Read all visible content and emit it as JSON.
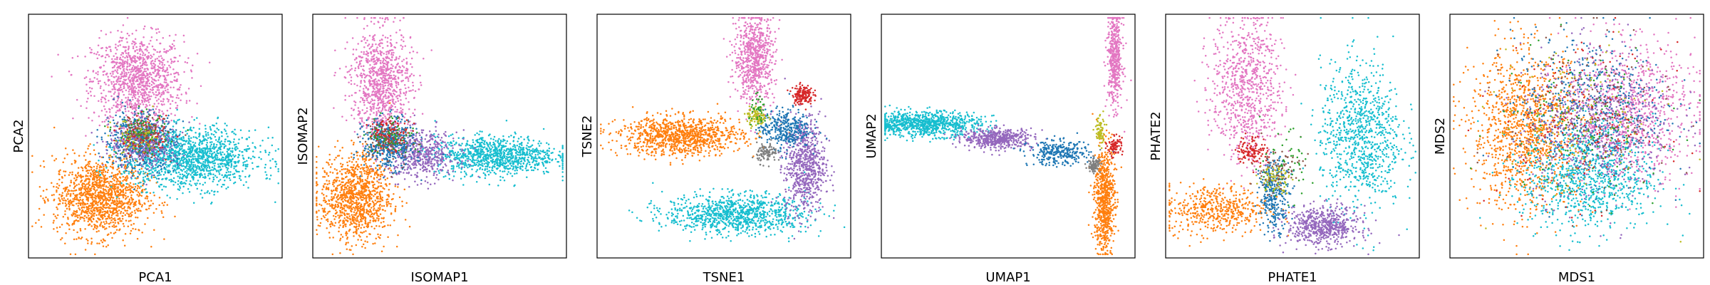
{
  "chart_data": [
    {
      "type": "scatter",
      "xlabel": "PCA1",
      "ylabel": "PCA2",
      "xticks": [],
      "yticks": [],
      "grid": false,
      "legend": "none",
      "clusters": [
        {
          "color": "#e377c2",
          "cx": 0.43,
          "cy": 0.73,
          "sx": 0.09,
          "sy": 0.09,
          "n": 1100
        },
        {
          "color": "#ff7f0e",
          "cx": 0.28,
          "cy": 0.25,
          "sx": 0.09,
          "sy": 0.08,
          "n": 1300
        },
        {
          "color": "#17becf",
          "cx": 0.64,
          "cy": 0.41,
          "sx": 0.13,
          "sy": 0.06,
          "n": 1400
        },
        {
          "color": "#1f77b4",
          "cx": 0.44,
          "cy": 0.48,
          "sx": 0.07,
          "sy": 0.06,
          "n": 500
        },
        {
          "color": "#9467bd",
          "cx": 0.46,
          "cy": 0.47,
          "sx": 0.07,
          "sy": 0.05,
          "n": 300
        },
        {
          "color": "#d62728",
          "cx": 0.45,
          "cy": 0.5,
          "sx": 0.05,
          "sy": 0.04,
          "n": 120
        },
        {
          "color": "#2ca02c",
          "cx": 0.45,
          "cy": 0.51,
          "sx": 0.05,
          "sy": 0.04,
          "n": 90
        },
        {
          "color": "#bcbd22",
          "cx": 0.43,
          "cy": 0.49,
          "sx": 0.05,
          "sy": 0.04,
          "n": 70
        },
        {
          "color": "#8c564b",
          "cx": 0.44,
          "cy": 0.5,
          "sx": 0.05,
          "sy": 0.05,
          "n": 80
        }
      ]
    },
    {
      "type": "scatter",
      "xlabel": "ISOMAP1",
      "ylabel": "ISOMAP2",
      "xticks": [],
      "yticks": [],
      "grid": false,
      "legend": "none",
      "clusters": [
        {
          "color": "#e377c2",
          "cx": 0.27,
          "cy": 0.72,
          "sx": 0.06,
          "sy": 0.11,
          "n": 900
        },
        {
          "color": "#ff7f0e",
          "cx": 0.17,
          "cy": 0.25,
          "sx": 0.07,
          "sy": 0.09,
          "n": 1100
        },
        {
          "color": "#17becf",
          "cx": 0.72,
          "cy": 0.42,
          "sx": 0.12,
          "sy": 0.04,
          "n": 1000
        },
        {
          "color": "#9467bd",
          "cx": 0.43,
          "cy": 0.42,
          "sx": 0.07,
          "sy": 0.05,
          "n": 500
        },
        {
          "color": "#1f77b4",
          "cx": 0.3,
          "cy": 0.47,
          "sx": 0.05,
          "sy": 0.05,
          "n": 450
        },
        {
          "color": "#d62728",
          "cx": 0.3,
          "cy": 0.51,
          "sx": 0.04,
          "sy": 0.03,
          "n": 120
        },
        {
          "color": "#2ca02c",
          "cx": 0.31,
          "cy": 0.5,
          "sx": 0.05,
          "sy": 0.04,
          "n": 80
        },
        {
          "color": "#8c564b",
          "cx": 0.3,
          "cy": 0.48,
          "sx": 0.05,
          "sy": 0.05,
          "n": 70
        }
      ]
    },
    {
      "type": "scatter",
      "xlabel": "TSNE1",
      "ylabel": "TSNE2",
      "xticks": [],
      "yticks": [],
      "grid": false,
      "legend": "none",
      "clusters": [
        {
          "color": "#e377c2",
          "cx": 0.62,
          "cy": 0.82,
          "sx": 0.04,
          "sy": 0.09,
          "n": 700
        },
        {
          "color": "#ff7f0e",
          "cx": 0.33,
          "cy": 0.5,
          "sx": 0.12,
          "sy": 0.04,
          "n": 1000
        },
        {
          "color": "#17becf",
          "cx": 0.55,
          "cy": 0.18,
          "sx": 0.14,
          "sy": 0.04,
          "n": 1000
        },
        {
          "color": "#9467bd",
          "cx": 0.82,
          "cy": 0.38,
          "sx": 0.04,
          "sy": 0.1,
          "n": 700
        },
        {
          "color": "#1f77b4",
          "cx": 0.74,
          "cy": 0.53,
          "sx": 0.05,
          "sy": 0.04,
          "n": 350
        },
        {
          "color": "#d62728",
          "cx": 0.81,
          "cy": 0.67,
          "sx": 0.02,
          "sy": 0.02,
          "n": 150
        },
        {
          "color": "#bcbd22",
          "cx": 0.63,
          "cy": 0.58,
          "sx": 0.02,
          "sy": 0.02,
          "n": 90
        },
        {
          "color": "#7f7f7f",
          "cx": 0.67,
          "cy": 0.43,
          "sx": 0.02,
          "sy": 0.02,
          "n": 100
        },
        {
          "color": "#2ca02c",
          "cx": 0.64,
          "cy": 0.6,
          "sx": 0.02,
          "sy": 0.03,
          "n": 40
        }
      ]
    },
    {
      "type": "scatter",
      "xlabel": "UMAP1",
      "ylabel": "UMAP2",
      "xticks": [],
      "yticks": [],
      "grid": false,
      "legend": "none",
      "clusters": [
        {
          "color": "#e377c2",
          "cx": 0.92,
          "cy": 0.82,
          "sx": 0.015,
          "sy": 0.1,
          "n": 450
        },
        {
          "color": "#17becf",
          "cx": 0.17,
          "cy": 0.55,
          "sx": 0.11,
          "sy": 0.025,
          "n": 900
        },
        {
          "color": "#9467bd",
          "cx": 0.46,
          "cy": 0.49,
          "sx": 0.07,
          "sy": 0.02,
          "n": 500
        },
        {
          "color": "#1f77b4",
          "cx": 0.7,
          "cy": 0.43,
          "sx": 0.06,
          "sy": 0.025,
          "n": 300
        },
        {
          "color": "#ff7f0e",
          "cx": 0.88,
          "cy": 0.24,
          "sx": 0.02,
          "sy": 0.11,
          "n": 700
        },
        {
          "color": "#d62728",
          "cx": 0.92,
          "cy": 0.46,
          "sx": 0.015,
          "sy": 0.02,
          "n": 80
        },
        {
          "color": "#bcbd22",
          "cx": 0.86,
          "cy": 0.52,
          "sx": 0.01,
          "sy": 0.03,
          "n": 70
        },
        {
          "color": "#7f7f7f",
          "cx": 0.84,
          "cy": 0.38,
          "sx": 0.012,
          "sy": 0.015,
          "n": 90
        }
      ]
    },
    {
      "type": "scatter",
      "xlabel": "PHATE1",
      "ylabel": "PHATE2",
      "xticks": [],
      "yticks": [],
      "grid": false,
      "legend": "none",
      "clusters": [
        {
          "color": "#e377c2",
          "cx": 0.32,
          "cy": 0.7,
          "sx": 0.07,
          "sy": 0.15,
          "n": 800
        },
        {
          "color": "#ff7f0e",
          "cx": 0.2,
          "cy": 0.2,
          "sx": 0.1,
          "sy": 0.05,
          "n": 500
        },
        {
          "color": "#17becf",
          "cx": 0.77,
          "cy": 0.5,
          "sx": 0.08,
          "sy": 0.15,
          "n": 900
        },
        {
          "color": "#9467bd",
          "cx": 0.62,
          "cy": 0.13,
          "sx": 0.07,
          "sy": 0.04,
          "n": 600
        },
        {
          "color": "#1f77b4",
          "cx": 0.43,
          "cy": 0.26,
          "sx": 0.03,
          "sy": 0.07,
          "n": 300
        },
        {
          "color": "#d62728",
          "cx": 0.34,
          "cy": 0.44,
          "sx": 0.03,
          "sy": 0.03,
          "n": 120
        },
        {
          "color": "#bcbd22",
          "cx": 0.43,
          "cy": 0.33,
          "sx": 0.03,
          "sy": 0.03,
          "n": 80
        },
        {
          "color": "#8c564b",
          "cx": 0.44,
          "cy": 0.36,
          "sx": 0.05,
          "sy": 0.05,
          "n": 70
        },
        {
          "color": "#2ca02c",
          "cx": 0.46,
          "cy": 0.38,
          "sx": 0.06,
          "sy": 0.07,
          "n": 50
        }
      ]
    },
    {
      "type": "scatter",
      "xlabel": "MDS1",
      "ylabel": "MDS2",
      "xticks": [],
      "yticks": [],
      "grid": false,
      "legend": "none",
      "clusters": [
        {
          "color": "#ff7f0e",
          "cx": 0.3,
          "cy": 0.52,
          "sx": 0.11,
          "sy": 0.16,
          "n": 1200
        },
        {
          "color": "#e377c2",
          "cx": 0.7,
          "cy": 0.6,
          "sx": 0.13,
          "sy": 0.14,
          "n": 900
        },
        {
          "color": "#17becf",
          "cx": 0.55,
          "cy": 0.33,
          "sx": 0.13,
          "sy": 0.11,
          "n": 900
        },
        {
          "color": "#1f77b4",
          "cx": 0.55,
          "cy": 0.62,
          "sx": 0.15,
          "sy": 0.15,
          "n": 500
        },
        {
          "color": "#9467bd",
          "cx": 0.58,
          "cy": 0.55,
          "sx": 0.15,
          "sy": 0.15,
          "n": 500
        },
        {
          "color": "#2ca02c",
          "cx": 0.52,
          "cy": 0.55,
          "sx": 0.16,
          "sy": 0.16,
          "n": 150
        },
        {
          "color": "#d62728",
          "cx": 0.52,
          "cy": 0.55,
          "sx": 0.16,
          "sy": 0.16,
          "n": 150
        },
        {
          "color": "#bcbd22",
          "cx": 0.5,
          "cy": 0.55,
          "sx": 0.16,
          "sy": 0.16,
          "n": 120
        },
        {
          "color": "#8c564b",
          "cx": 0.55,
          "cy": 0.58,
          "sx": 0.16,
          "sy": 0.16,
          "n": 150
        }
      ]
    }
  ]
}
